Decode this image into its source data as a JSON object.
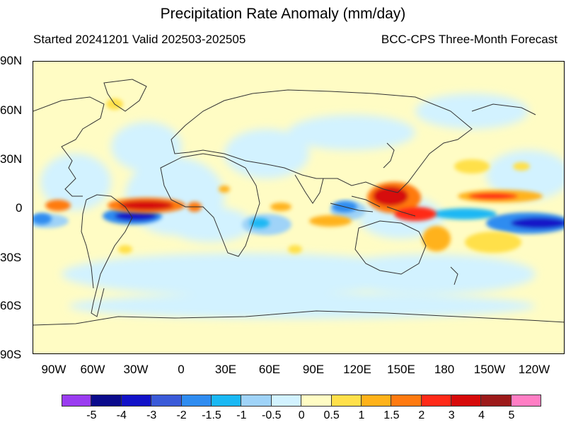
{
  "title": "Precipitation Rate Anomaly (mm/day)",
  "subtitle_left": "Started 20241201  Valid 202503-202505",
  "subtitle_right": "BCC-CPS Three-Month Forecast",
  "lat_labels": [
    "90N",
    "60N",
    "30N",
    "0",
    "30S",
    "60S",
    "90S"
  ],
  "lon_labels": [
    "90W",
    "60W",
    "30W",
    "0",
    "30E",
    "60E",
    "90E",
    "120E",
    "150E",
    "180",
    "150W",
    "120W"
  ],
  "colorbar": {
    "colors": [
      "#9a3cf0",
      "#0b0b8c",
      "#1212c8",
      "#3a5ad8",
      "#2f8cf0",
      "#1ab8f4",
      "#9fd3f8",
      "#d2f2ff",
      "#fffcc4",
      "#ffe04a",
      "#ffb21a",
      "#ff7a10",
      "#ff2a18",
      "#d60a0a",
      "#9c1a1a",
      "#ff7ec4"
    ],
    "labels": [
      "-5",
      "-4",
      "-3",
      "-2",
      "-1.5",
      "-1",
      "-0.5",
      "0",
      "0.5",
      "1",
      "1.5",
      "2",
      "3",
      "4",
      "5"
    ]
  }
}
